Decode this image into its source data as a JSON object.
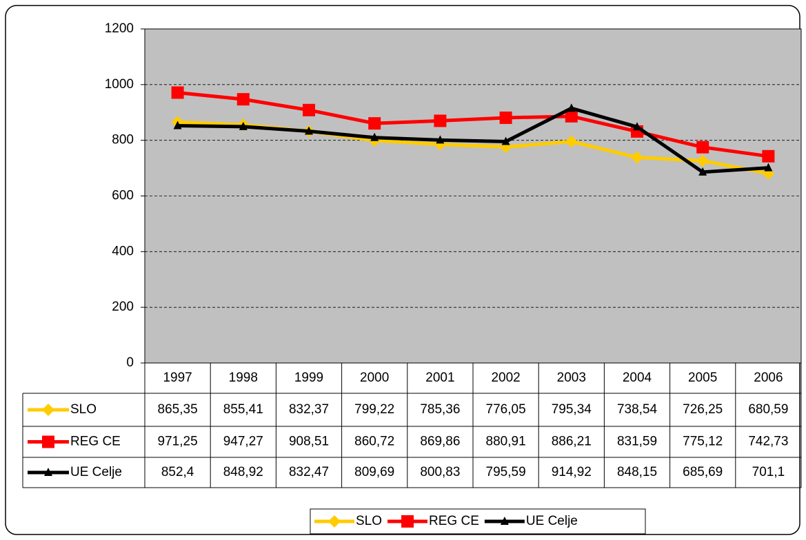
{
  "chart_data": {
    "type": "line",
    "categories": [
      "1997",
      "1998",
      "1999",
      "2000",
      "2001",
      "2002",
      "2003",
      "2004",
      "2005",
      "2006"
    ],
    "series": [
      {
        "name": "SLO",
        "color": "#ffcc00",
        "marker": "diamond",
        "values": [
          865.35,
          855.41,
          832.37,
          799.22,
          785.36,
          776.05,
          795.34,
          738.54,
          726.25,
          680.59
        ],
        "value_labels": [
          "865,35",
          "855,41",
          "832,37",
          "799,22",
          "785,36",
          "776,05",
          "795,34",
          "738,54",
          "726,25",
          "680,59"
        ]
      },
      {
        "name": "REG CE",
        "color": "#ff0000",
        "marker": "square",
        "values": [
          971.25,
          947.27,
          908.51,
          860.72,
          869.86,
          880.91,
          886.21,
          831.59,
          775.12,
          742.73
        ],
        "value_labels": [
          "971,25",
          "947,27",
          "908,51",
          "860,72",
          "869,86",
          "880,91",
          "886,21",
          "831,59",
          "775,12",
          "742,73"
        ]
      },
      {
        "name": "UE Celje",
        "color": "#000000",
        "marker": "triangle",
        "values": [
          852.4,
          848.92,
          832.47,
          809.69,
          800.83,
          795.59,
          914.92,
          848.15,
          685.69,
          701.1
        ],
        "value_labels": [
          "852,4",
          "848,92",
          "832,47",
          "809,69",
          "800,83",
          "795,59",
          "914,92",
          "848,15",
          "685,69",
          "701,1"
        ]
      }
    ],
    "ylim": [
      0,
      1200
    ],
    "yticks": [
      0,
      200,
      400,
      600,
      800,
      1000,
      1200
    ],
    "grid": true,
    "plot_background": "#c0c0c0",
    "legend": "bottom",
    "data_table": true
  }
}
